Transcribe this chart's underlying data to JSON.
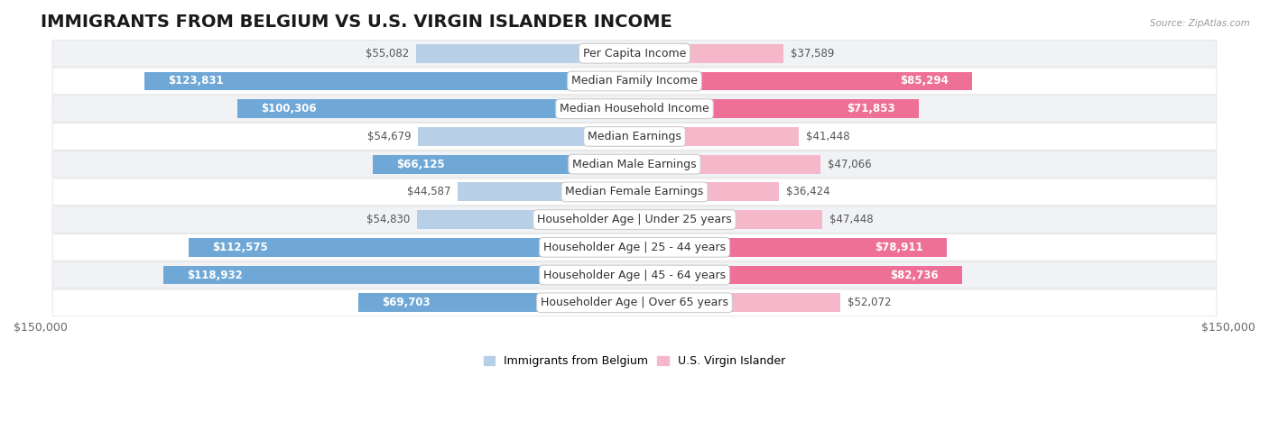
{
  "title": "IMMIGRANTS FROM BELGIUM VS U.S. VIRGIN ISLANDER INCOME",
  "source": "Source: ZipAtlas.com",
  "categories": [
    "Per Capita Income",
    "Median Family Income",
    "Median Household Income",
    "Median Earnings",
    "Median Male Earnings",
    "Median Female Earnings",
    "Householder Age | Under 25 years",
    "Householder Age | 25 - 44 years",
    "Householder Age | 45 - 64 years",
    "Householder Age | Over 65 years"
  ],
  "belgium_values": [
    55082,
    123831,
    100306,
    54679,
    66125,
    44587,
    54830,
    112575,
    118932,
    69703
  ],
  "virgin_values": [
    37589,
    85294,
    71853,
    41448,
    47066,
    36424,
    47448,
    78911,
    82736,
    52072
  ],
  "belgium_color_light": "#b8cfe8",
  "belgium_color_dark": "#6fa8d6",
  "virgin_color_light": "#f5b8ca",
  "virgin_color_dark": "#ef7096",
  "label_color_inside": "#ffffff",
  "label_color_outside": "#555555",
  "max_value": 150000,
  "xlabel_left": "$150,000",
  "xlabel_right": "$150,000",
  "legend_belgium": "Immigrants from Belgium",
  "legend_virgin": "U.S. Virgin Islander",
  "background_color": "#ffffff",
  "row_bg_even": "#f0f2f5",
  "row_bg_odd": "#ffffff",
  "title_fontsize": 14,
  "label_fontsize": 8.5,
  "category_fontsize": 9,
  "inside_threshold": 60000
}
